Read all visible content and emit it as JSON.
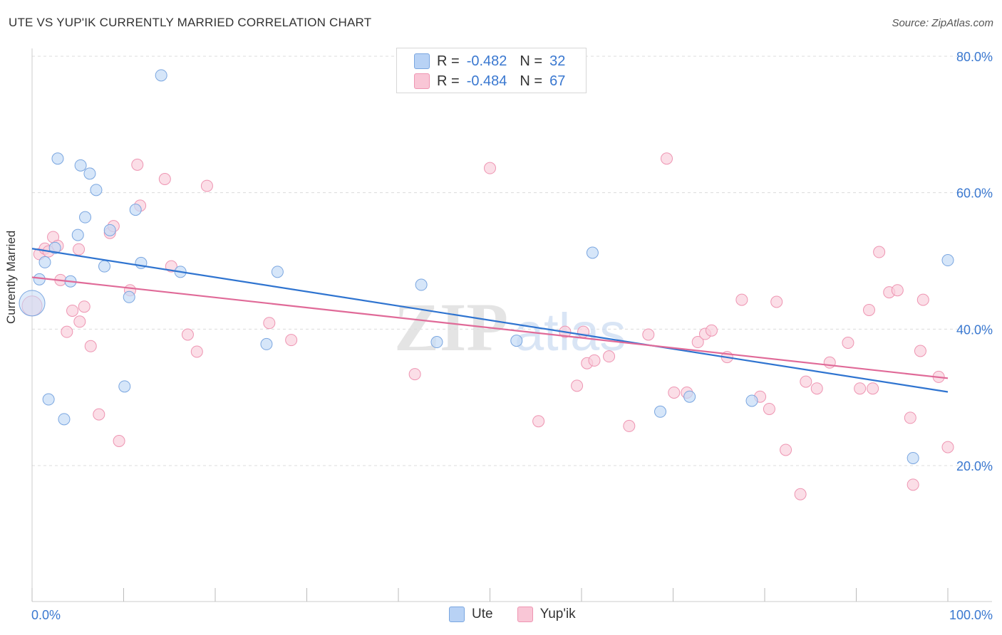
{
  "title": "UTE VS YUP'IK CURRENTLY MARRIED CORRELATION CHART",
  "source": "Source: ZipAtlas.com",
  "watermark": {
    "zip": "ZIP",
    "atlas": "atlas"
  },
  "legend": {
    "rows": [
      {
        "r_label": "R =",
        "r_value": "-0.482",
        "n_label": "N =",
        "n_value": "32",
        "swatch_fill": "#b8d2f5",
        "swatch_stroke": "#7aa6e0"
      },
      {
        "r_label": "R =",
        "r_value": "-0.484",
        "n_label": "N =",
        "n_value": "67",
        "swatch_fill": "#f9c6d6",
        "swatch_stroke": "#ee95b2"
      }
    ]
  },
  "bottom_legend": [
    "Ute",
    "Yup'ik"
  ],
  "chart_data": {
    "type": "scatter",
    "title": "UTE VS YUP'IK CURRENTLY MARRIED CORRELATION CHART",
    "xlabel": "",
    "ylabel": "Currently Married",
    "xlim": [
      0,
      100
    ],
    "ylim": [
      0,
      83
    ],
    "x_tick_labels": [
      "0.0%",
      "100.0%"
    ],
    "y_ticks": [
      {
        "value": 20,
        "label": "20.0%"
      },
      {
        "value": 40,
        "label": "40.0%"
      },
      {
        "value": 60,
        "label": "60.0%"
      },
      {
        "value": 80,
        "label": "80.0%"
      }
    ],
    "grid": true,
    "legend_position": "top-center",
    "series": [
      {
        "name": "Ute",
        "color": "#7aa6e0",
        "fill": "#c5dbf6",
        "line_color": "#2f74d0",
        "trend": {
          "x": [
            0,
            100
          ],
          "y": [
            51.8,
            30.8
          ]
        },
        "points": [
          [
            0,
            43.8
          ],
          [
            0.8,
            47.3
          ],
          [
            1.4,
            49.8
          ],
          [
            1.8,
            29.7
          ],
          [
            2.5,
            51.9
          ],
          [
            2.8,
            65.0
          ],
          [
            3.5,
            26.8
          ],
          [
            4.2,
            47.0
          ],
          [
            5.0,
            53.8
          ],
          [
            5.3,
            64.0
          ],
          [
            5.8,
            56.4
          ],
          [
            6.3,
            62.8
          ],
          [
            7.0,
            60.4
          ],
          [
            7.9,
            49.2
          ],
          [
            8.5,
            54.5
          ],
          [
            10.1,
            31.6
          ],
          [
            10.6,
            44.7
          ],
          [
            11.3,
            57.5
          ],
          [
            11.9,
            49.7
          ],
          [
            14.1,
            77.2
          ],
          [
            16.2,
            48.4
          ],
          [
            25.6,
            37.8
          ],
          [
            26.8,
            48.4
          ],
          [
            42.5,
            46.5
          ],
          [
            44.2,
            38.1
          ],
          [
            52.9,
            38.3
          ],
          [
            61.2,
            51.2
          ],
          [
            68.6,
            27.9
          ],
          [
            71.8,
            30.1
          ],
          [
            78.6,
            29.5
          ],
          [
            96.2,
            21.1
          ],
          [
            100.0,
            50.1
          ]
        ]
      },
      {
        "name": "Yup'ik",
        "color": "#ee95b2",
        "fill": "#f9d0dd",
        "line_color": "#e06a98",
        "trend": {
          "x": [
            0,
            100
          ],
          "y": [
            47.6,
            32.8
          ]
        },
        "points": [
          [
            0,
            43.4
          ],
          [
            0.8,
            51.0
          ],
          [
            1.4,
            51.8
          ],
          [
            1.8,
            51.4
          ],
          [
            2.3,
            53.5
          ],
          [
            2.8,
            52.2
          ],
          [
            3.1,
            47.2
          ],
          [
            3.8,
            39.6
          ],
          [
            4.4,
            42.7
          ],
          [
            5.1,
            51.7
          ],
          [
            5.2,
            41.1
          ],
          [
            5.7,
            43.3
          ],
          [
            6.4,
            37.5
          ],
          [
            7.3,
            27.5
          ],
          [
            8.5,
            54.1
          ],
          [
            8.9,
            55.1
          ],
          [
            9.5,
            23.6
          ],
          [
            10.7,
            45.7
          ],
          [
            11.5,
            64.1
          ],
          [
            11.8,
            58.1
          ],
          [
            14.5,
            62.0
          ],
          [
            15.2,
            49.2
          ],
          [
            17.0,
            39.2
          ],
          [
            18.0,
            36.7
          ],
          [
            19.1,
            61.0
          ],
          [
            25.9,
            40.9
          ],
          [
            28.3,
            38.4
          ],
          [
            41.8,
            33.4
          ],
          [
            50.0,
            63.6
          ],
          [
            55.3,
            26.5
          ],
          [
            58.2,
            39.6
          ],
          [
            59.5,
            31.7
          ],
          [
            60.2,
            39.6
          ],
          [
            60.6,
            35.0
          ],
          [
            61.4,
            35.4
          ],
          [
            63.0,
            36.0
          ],
          [
            65.2,
            25.8
          ],
          [
            67.3,
            39.2
          ],
          [
            69.3,
            65.0
          ],
          [
            70.1,
            30.7
          ],
          [
            71.5,
            30.7
          ],
          [
            72.7,
            38.1
          ],
          [
            73.5,
            39.3
          ],
          [
            74.2,
            39.8
          ],
          [
            75.9,
            35.9
          ],
          [
            77.5,
            44.3
          ],
          [
            79.5,
            30.1
          ],
          [
            80.5,
            28.3
          ],
          [
            81.3,
            44.0
          ],
          [
            82.3,
            22.3
          ],
          [
            83.9,
            15.8
          ],
          [
            84.5,
            32.3
          ],
          [
            85.7,
            31.3
          ],
          [
            87.1,
            35.1
          ],
          [
            89.1,
            38.0
          ],
          [
            90.4,
            31.3
          ],
          [
            91.4,
            42.8
          ],
          [
            91.8,
            31.3
          ],
          [
            92.5,
            51.3
          ],
          [
            93.6,
            45.4
          ],
          [
            94.5,
            45.7
          ],
          [
            95.9,
            27.0
          ],
          [
            96.2,
            17.2
          ],
          [
            97.0,
            36.8
          ],
          [
            97.3,
            44.3
          ],
          [
            99.0,
            33.0
          ],
          [
            100.0,
            22.7
          ]
        ]
      }
    ]
  }
}
